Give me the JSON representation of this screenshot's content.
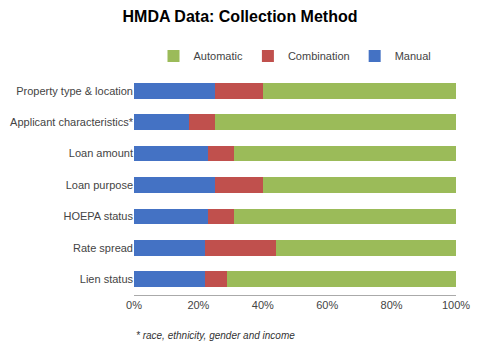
{
  "chart_data": {
    "type": "bar",
    "orientation": "horizontal",
    "stacked": true,
    "title": "HMDA Data: Collection Method",
    "categories": [
      "Property type & location",
      "Applicant characteristics*",
      "Loan amount",
      "Loan purpose",
      "HOEPA status",
      "Rate spread",
      "Lien status"
    ],
    "series": [
      {
        "name": "Manual",
        "color": "#4472C4",
        "values": [
          25,
          17,
          23,
          25,
          23,
          22,
          22
        ]
      },
      {
        "name": "Combination",
        "color": "#C0504D",
        "values": [
          15,
          8,
          8,
          15,
          8,
          22,
          7
        ]
      },
      {
        "name": "Automatic",
        "color": "#9BBB59",
        "values": [
          60,
          75,
          69,
          60,
          69,
          56,
          71
        ]
      }
    ],
    "xlim": [
      0,
      100
    ],
    "xticks": [
      {
        "value": 0,
        "label": "0%"
      },
      {
        "value": 20,
        "label": "20%"
      },
      {
        "value": 40,
        "label": "40%"
      },
      {
        "value": 60,
        "label": "60%"
      },
      {
        "value": 80,
        "label": "80%"
      },
      {
        "value": 100,
        "label": "100%"
      }
    ],
    "annotations": [
      "* race, ethnicity, gender and income"
    ],
    "legend": "top",
    "grid": false
  }
}
